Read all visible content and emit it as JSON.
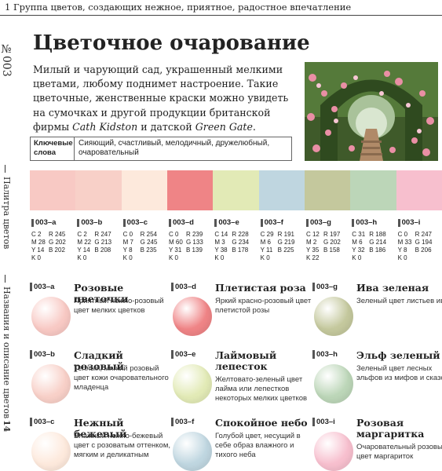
{
  "header": {
    "chapter": "1 Группа цветов, создающих нежное, приятное, радостное впечатление"
  },
  "side": {
    "number": "№003",
    "palette": "Палитра цветов",
    "descriptions": "Названия и описание цветов",
    "page": "14"
  },
  "title": "Цветочное очарование",
  "intro": {
    "part1": "Милый и чарующий сад, украшенный мелкими цветами, любому поднимет настроение. Такие цветочные, женственные краски можно увидеть на сумочках и другой продукции британской фирмы ",
    "brand1": "Cath Kidston",
    "part2": " и датской ",
    "brand2": "Green Gate",
    "part3": "."
  },
  "keywords": {
    "label": "Ключевые слова",
    "text": "Сияющий, счастливый, мелодичный, дружелюбный, очаровательный"
  },
  "palette": [
    {
      "code": "003–a",
      "hex": "#f8c9c4",
      "cmyk": [
        "C 2",
        "M 28",
        "Y 14",
        "K 0"
      ],
      "rgb": [
        "R 245",
        "G 202",
        "B 202"
      ]
    },
    {
      "code": "003–b",
      "hex": "#f8d0c8",
      "cmyk": [
        "C 2",
        "M 22",
        "Y 14",
        "K 0"
      ],
      "rgb": [
        "R 247",
        "G 213",
        "B 208"
      ]
    },
    {
      "code": "003–c",
      "hex": "#fde9dc",
      "cmyk": [
        "C 0",
        "M 7",
        "Y 8",
        "K 0"
      ],
      "rgb": [
        "R 254",
        "G 245",
        "B 235"
      ]
    },
    {
      "code": "003–d",
      "hex": "#ef8486",
      "cmyk": [
        "C 0",
        "M 60",
        "Y 31",
        "K 0"
      ],
      "rgb": [
        "R 239",
        "G 133",
        "B 139"
      ]
    },
    {
      "code": "003–e",
      "hex": "#e2eab6",
      "cmyk": [
        "C 14",
        "M 3",
        "Y 38",
        "K 0"
      ],
      "rgb": [
        "R 228",
        "G 234",
        "B 178"
      ]
    },
    {
      "code": "003–f",
      "hex": "#bfd6e0",
      "cmyk": [
        "C 29",
        "M 6",
        "Y 11",
        "K 0"
      ],
      "rgb": [
        "R 191",
        "G 219",
        "B 225"
      ]
    },
    {
      "code": "003–g",
      "hex": "#c4c89d",
      "cmyk": [
        "C 12",
        "M 2",
        "Y 35",
        "K 22"
      ],
      "rgb": [
        "R 197",
        "G 202",
        "B 158"
      ]
    },
    {
      "code": "003–h",
      "hex": "#bcd6b8",
      "cmyk": [
        "C 31",
        "M 6",
        "Y 32",
        "K 0"
      ],
      "rgb": [
        "R 188",
        "G 214",
        "B 186"
      ]
    },
    {
      "code": "003–i",
      "hex": "#f7bfce",
      "cmyk": [
        "C 0",
        "M 33",
        "Y 8",
        "K 0"
      ],
      "rgb": [
        "R 247",
        "G 194",
        "B 206"
      ]
    }
  ],
  "descriptions": [
    {
      "code": "003–a",
      "name": "Розовые цветочки",
      "text": "Приятный нежно-розовый цвет мелких цветков"
    },
    {
      "code": "003–d",
      "name": "Плетистая роза",
      "text": "Яркий красно-розовый цвет плетистой розы"
    },
    {
      "code": "003–g",
      "name": "Ива зеленая",
      "text": "Зеленый цвет листьев ивы"
    },
    {
      "code": "003–b",
      "name": "Сладкий розовый",
      "text": "Теплый, мягкий розовый цвет кожи очаровательного младенца"
    },
    {
      "code": "003–e",
      "name": "Лаймовый лепесток",
      "text": "Желтовато-зеленый цвет лайма или лепестков некоторых мелких цветков"
    },
    {
      "code": "003–h",
      "name": "Эльф зеленый",
      "text": "Зеленый цвет лесных эльфов из мифов и сказок"
    },
    {
      "code": "003–c",
      "name": "Нежный бежевый",
      "text": "Влажный нежно-бежевый цвет с розоватым оттенком, мягким и деликатным"
    },
    {
      "code": "003–f",
      "name": "Спокойное небо",
      "text": "Голубой цвет, несущий в себе образ влажного и тихого неба"
    },
    {
      "code": "003–i",
      "name": "Розовая маргаритка",
      "text": "Очаровательный розовый цвет маргариток"
    }
  ]
}
